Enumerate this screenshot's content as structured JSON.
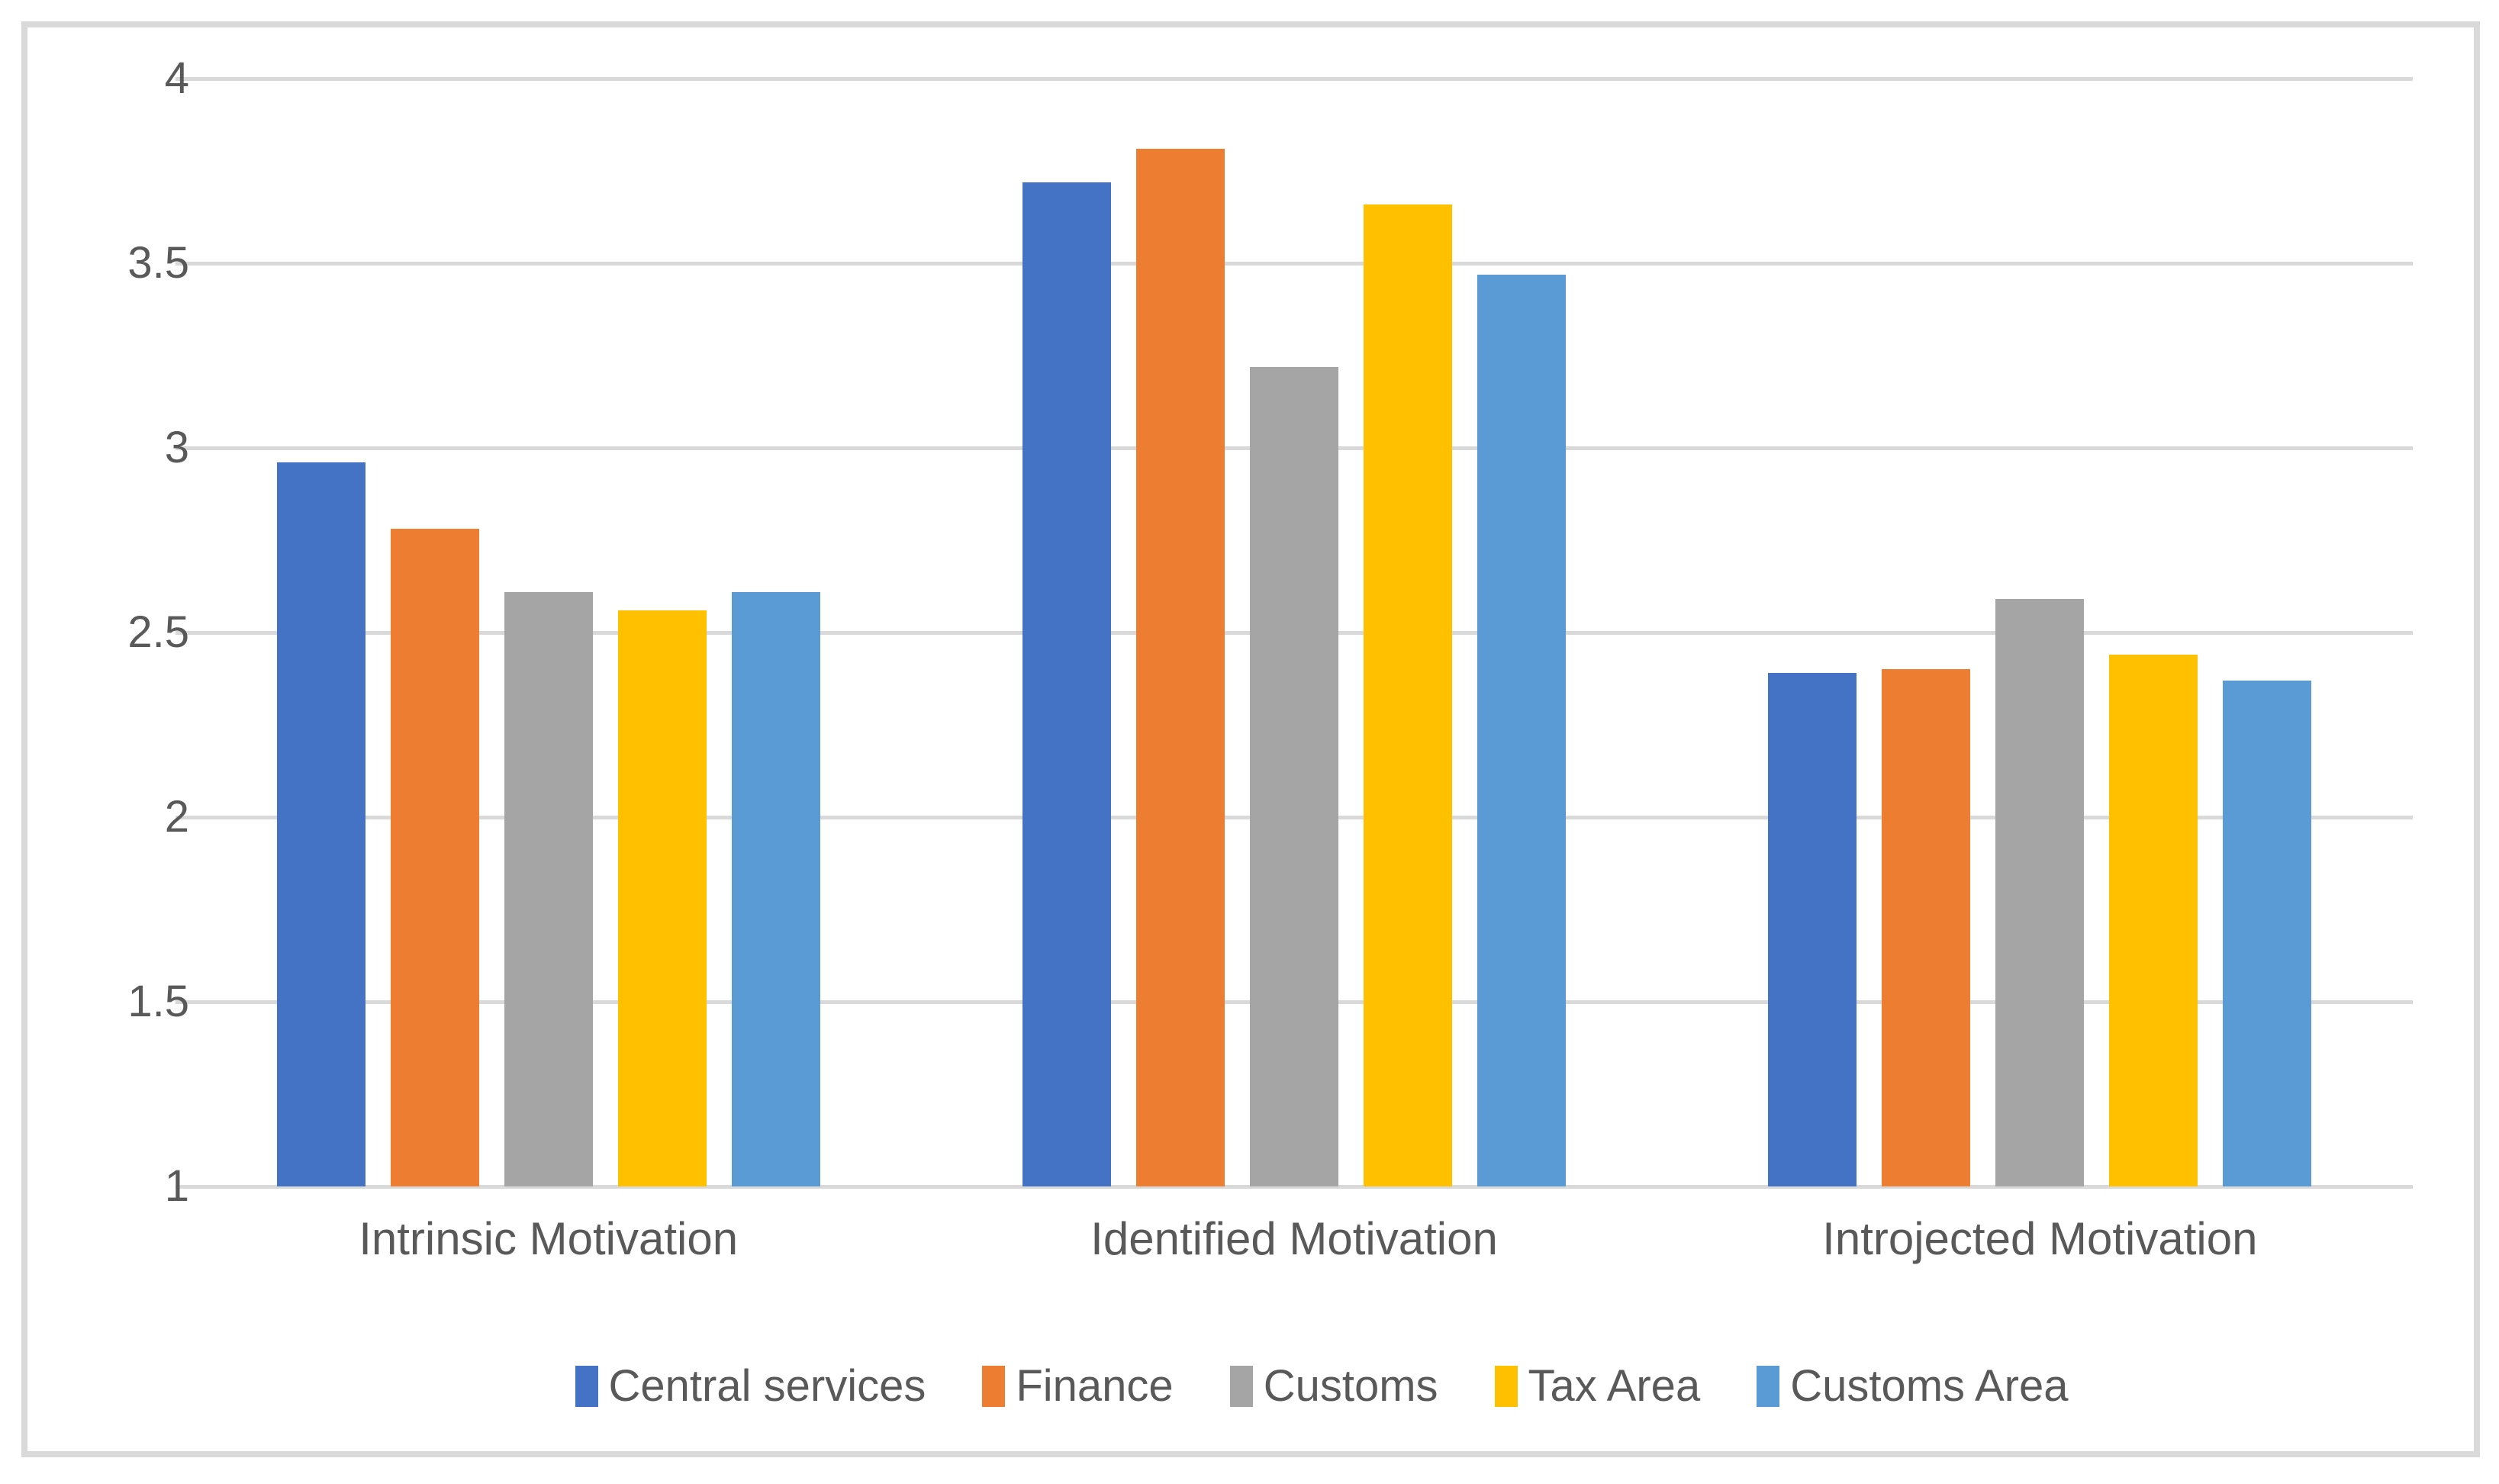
{
  "chart_data": {
    "type": "bar",
    "title": "",
    "categories": [
      "Intrinsic Motivation",
      "Identified Motivation",
      "Introjected Motivation"
    ],
    "series": [
      {
        "name": "Central services",
        "color": "#4472C4",
        "values": [
          2.96,
          3.72,
          2.39
        ]
      },
      {
        "name": "Finance",
        "color": "#ED7D31",
        "values": [
          2.78,
          3.81,
          2.4
        ]
      },
      {
        "name": "Customs",
        "color": "#A5A5A5",
        "values": [
          2.61,
          3.22,
          2.59
        ]
      },
      {
        "name": "Tax Area",
        "color": "#FFC000",
        "values": [
          2.56,
          3.66,
          2.44
        ]
      },
      {
        "name": "Customs Area",
        "color": "#5B9BD5",
        "values": [
          2.61,
          3.47,
          2.37
        ]
      }
    ],
    "ylim": [
      1,
      4
    ],
    "ytick_step": 0.5,
    "yticks": [
      "4",
      "3.5",
      "3",
      "2.5",
      "2",
      "1.5",
      "1"
    ],
    "grid": true,
    "legend_position": "bottom",
    "xlabel": "",
    "ylabel": ""
  },
  "colors": {
    "grid": "#D9D9D9",
    "card_border": "#D9D9D9",
    "axis_text": "#595959",
    "background": "#FFFFFF"
  }
}
